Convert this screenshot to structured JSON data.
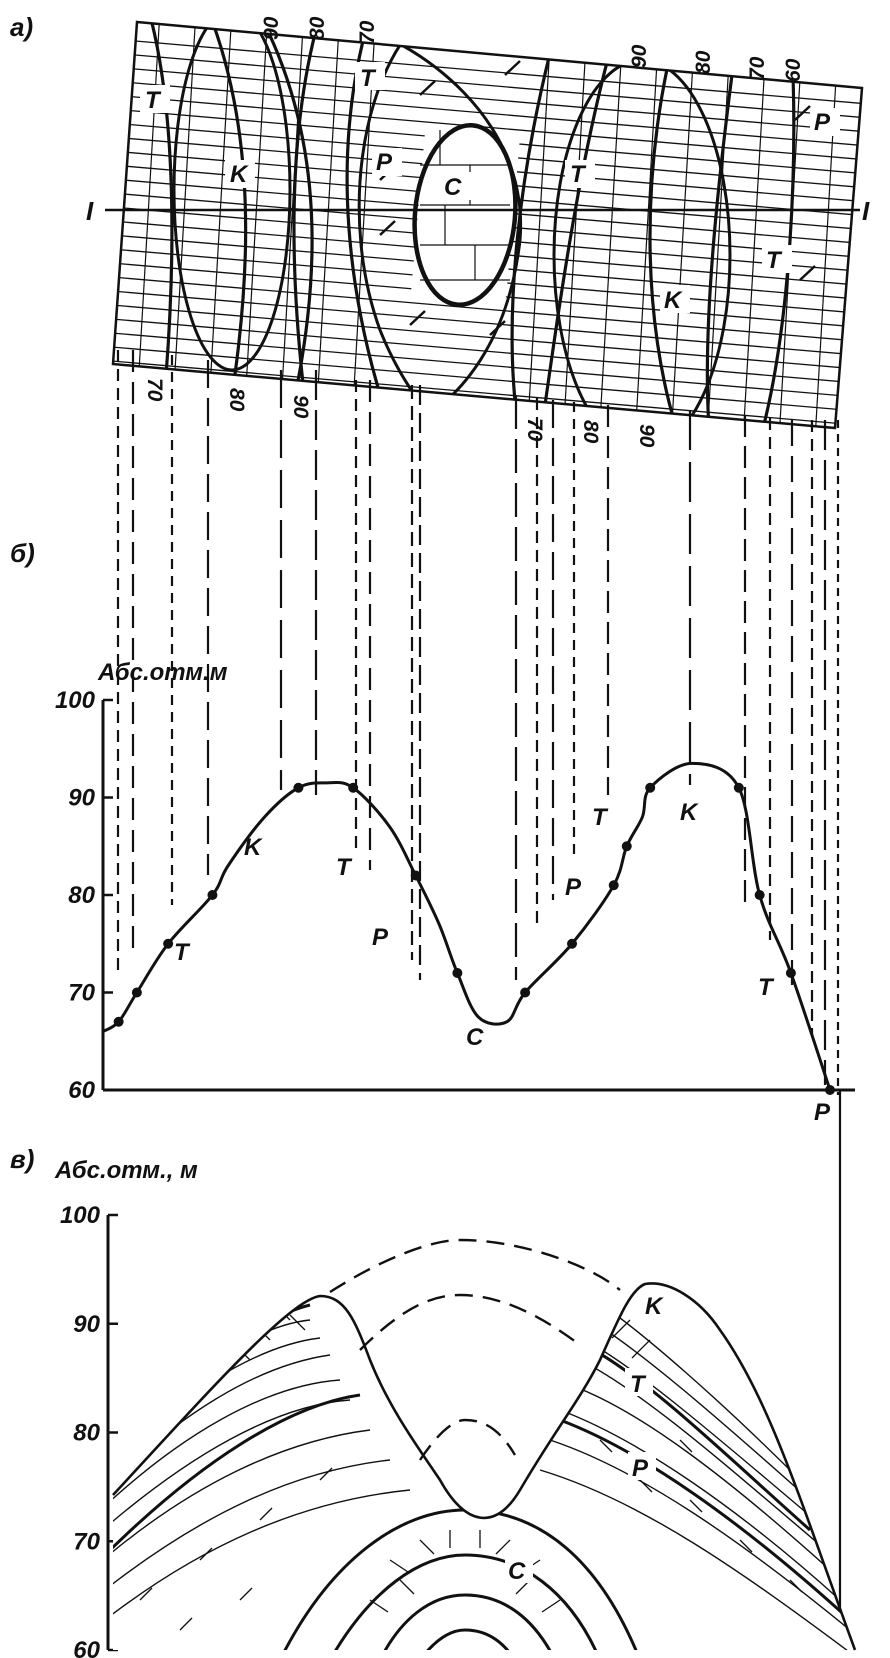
{
  "panels": {
    "a": {
      "label": "а)",
      "section_line": {
        "left": "I",
        "right": "I"
      },
      "outcrops": [
        "T",
        "K",
        "T",
        "P",
        "C",
        "T",
        "K",
        "T",
        "P"
      ],
      "contours_top": [
        "90",
        "80",
        "70",
        "90",
        "80",
        "70",
        "60"
      ],
      "contours_bottom": [
        "70",
        "80",
        "90",
        "70",
        "80",
        "90"
      ]
    },
    "b": {
      "label": "б)",
      "y_title": "Абс.отм.м",
      "ticks": [
        "100",
        "90",
        "80",
        "70",
        "60"
      ],
      "markers": [
        "K",
        "T",
        "T",
        "P",
        "C",
        "P",
        "T",
        "K",
        "T",
        "P"
      ]
    },
    "c": {
      "label": "в)",
      "y_title": "Абс.отм., м",
      "ticks": [
        "100",
        "90",
        "80",
        "70",
        "60"
      ],
      "layers": [
        "K",
        "T",
        "P",
        "C"
      ]
    }
  },
  "chart_data": [
    {
      "type": "line",
      "title": "",
      "ylabel": "Абс.отм.м",
      "ylim": [
        60,
        100
      ],
      "yticks": [
        60,
        70,
        80,
        90,
        100
      ],
      "x_relative": [
        0,
        0.06,
        0.13,
        0.25,
        0.42,
        0.48,
        0.62,
        0.75,
        0.86,
        0.96,
        1.1,
        1.2,
        1.29,
        1.36,
        1.44,
        1.55,
        1.62,
        1.8,
        1.96,
        2.01,
        2.07,
        2.1,
        2.26,
        2.44,
        2.52,
        2.64,
        2.79
      ],
      "series": [
        {
          "values": [
            66,
            67,
            70,
            75,
            80,
            83,
            88,
            91,
            91.5,
            91,
            87,
            82,
            77,
            72,
            67.5,
            67,
            70,
            75,
            81,
            85,
            88,
            91,
            93.5,
            91,
            80,
            72,
            60
          ]
        }
      ]
    }
  ]
}
